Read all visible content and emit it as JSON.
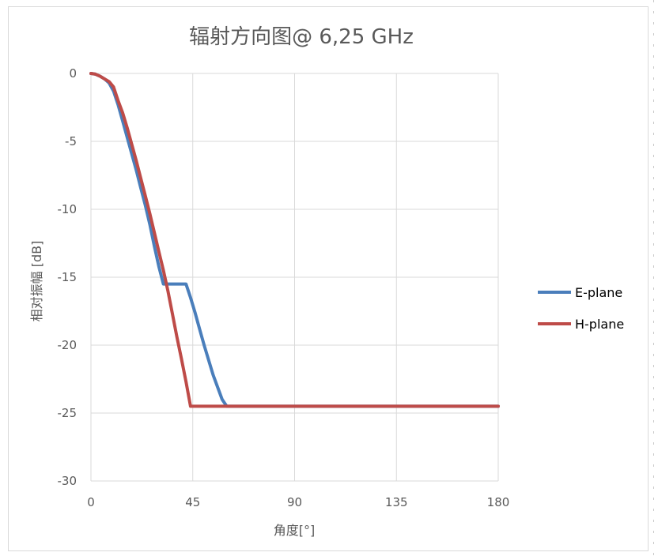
{
  "chart_data": {
    "type": "line",
    "title": "辐射方向图@ 6,25 GHz",
    "xlabel": "角度[°]",
    "ylabel": "相对振幅 [dB]",
    "xlim": [
      0,
      180
    ],
    "ylim": [
      -30,
      0
    ],
    "xticks": [
      0,
      45,
      90,
      135,
      180
    ],
    "yticks": [
      0,
      -5,
      -10,
      -15,
      -20,
      -25,
      -30
    ],
    "grid": true,
    "legend_position": "right",
    "series": [
      {
        "name": "E-plane",
        "color": "#4a7ebb",
        "points": [
          [
            0,
            0
          ],
          [
            2,
            -0.05
          ],
          [
            4,
            -0.2
          ],
          [
            6,
            -0.4
          ],
          [
            8,
            -0.7
          ],
          [
            10,
            -1.3
          ],
          [
            12,
            -2.3
          ],
          [
            14,
            -3.5
          ],
          [
            16,
            -4.7
          ],
          [
            18,
            -5.9
          ],
          [
            20,
            -7.1
          ],
          [
            22,
            -8.4
          ],
          [
            24,
            -9.7
          ],
          [
            26,
            -11.1
          ],
          [
            28,
            -12.7
          ],
          [
            30,
            -14.2
          ],
          [
            32,
            -15.5
          ],
          [
            42,
            -15.5
          ],
          [
            44,
            -16.5
          ],
          [
            46,
            -17.6
          ],
          [
            48,
            -18.8
          ],
          [
            50,
            -20.0
          ],
          [
            52,
            -21.1
          ],
          [
            54,
            -22.2
          ],
          [
            56,
            -23.1
          ],
          [
            58,
            -24.0
          ],
          [
            60,
            -24.5
          ],
          [
            180,
            -24.5
          ]
        ]
      },
      {
        "name": "H-plane",
        "color": "#be4b48",
        "points": [
          [
            0,
            0
          ],
          [
            2,
            -0.05
          ],
          [
            4,
            -0.2
          ],
          [
            6,
            -0.4
          ],
          [
            8,
            -0.6
          ],
          [
            10,
            -1.0
          ],
          [
            12,
            -2.0
          ],
          [
            14,
            -2.9
          ],
          [
            16,
            -4.0
          ],
          [
            18,
            -5.2
          ],
          [
            20,
            -6.4
          ],
          [
            22,
            -7.7
          ],
          [
            24,
            -9.0
          ],
          [
            26,
            -10.3
          ],
          [
            28,
            -11.7
          ],
          [
            30,
            -13.1
          ],
          [
            32,
            -14.5
          ],
          [
            34,
            -16.0
          ],
          [
            36,
            -17.7
          ],
          [
            38,
            -19.4
          ],
          [
            40,
            -21.0
          ],
          [
            42,
            -22.7
          ],
          [
            44,
            -24.5
          ],
          [
            180,
            -24.5
          ]
        ]
      }
    ]
  }
}
